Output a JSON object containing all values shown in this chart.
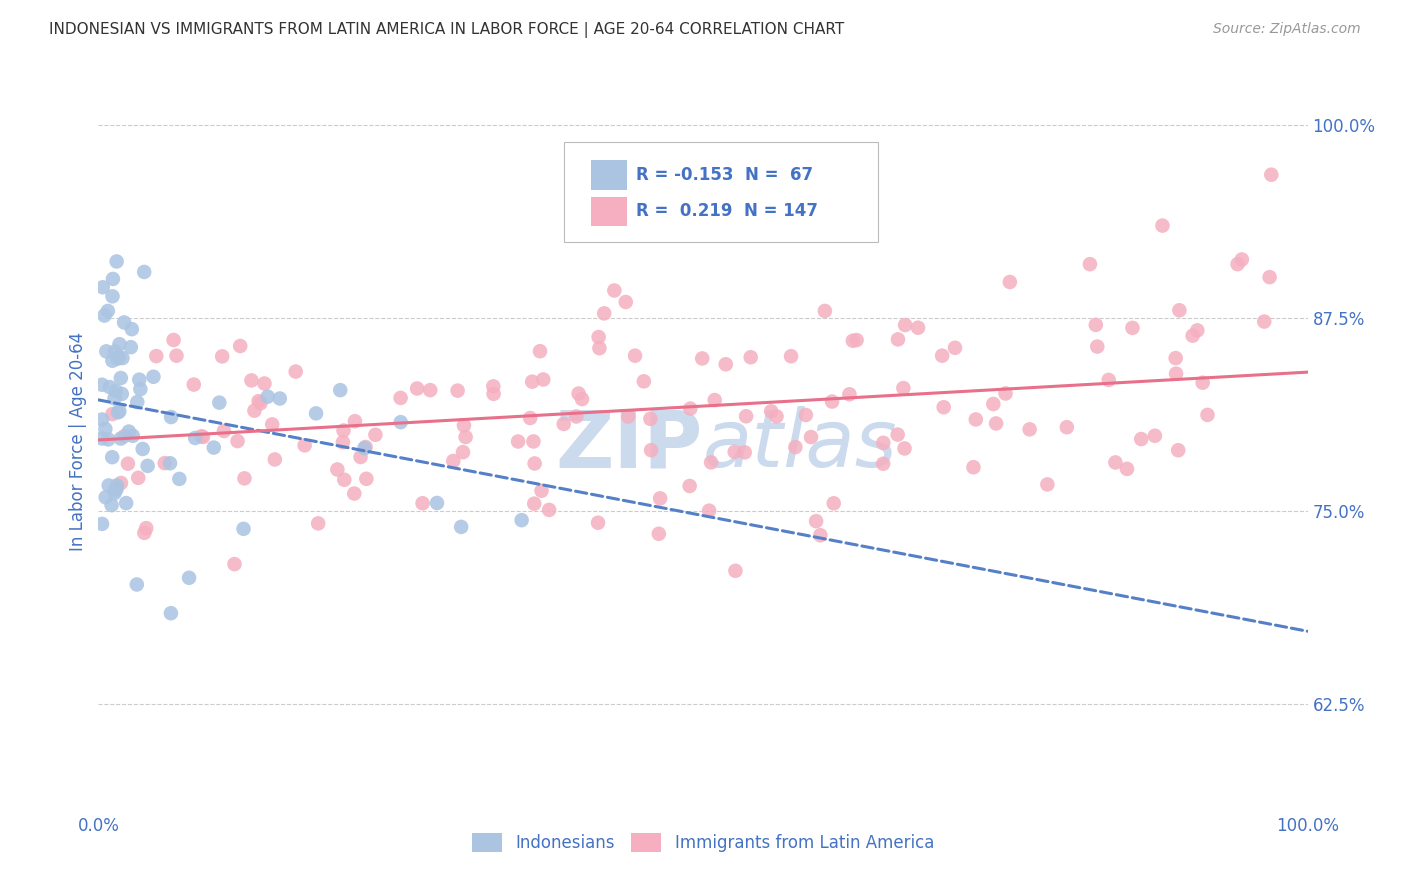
{
  "title": "INDONESIAN VS IMMIGRANTS FROM LATIN AMERICA IN LABOR FORCE | AGE 20-64 CORRELATION CHART",
  "source": "Source: ZipAtlas.com",
  "ylabel": "In Labor Force | Age 20-64",
  "xlim": [
    0.0,
    1.0
  ],
  "ylim": [
    0.555,
    1.035
  ],
  "x_tick_labels": [
    "0.0%",
    "100.0%"
  ],
  "y_ticks_right": [
    0.625,
    0.75,
    0.875,
    1.0
  ],
  "y_tick_labels_right": [
    "62.5%",
    "75.0%",
    "87.5%",
    "100.0%"
  ],
  "legend_R1": "-0.153",
  "legend_N1": "67",
  "legend_R2": "0.219",
  "legend_N2": "147",
  "blue_color": "#aac4e2",
  "pink_color": "#f5afc0",
  "blue_line_color": "#5580c8",
  "pink_line_color": "#e8708a",
  "title_color": "#333333",
  "source_color": "#999999",
  "axis_label_color": "#4472C4",
  "tick_color": "#4472C4",
  "watermark_text": "ZIPAtlas",
  "watermark_color": "#ccdaed",
  "background_color": "#ffffff",
  "grid_color": "#cccccc",
  "blue_line_start_y": 0.822,
  "blue_line_end_y": 0.672,
  "pink_line_start_y": 0.796,
  "pink_line_end_y": 0.84
}
